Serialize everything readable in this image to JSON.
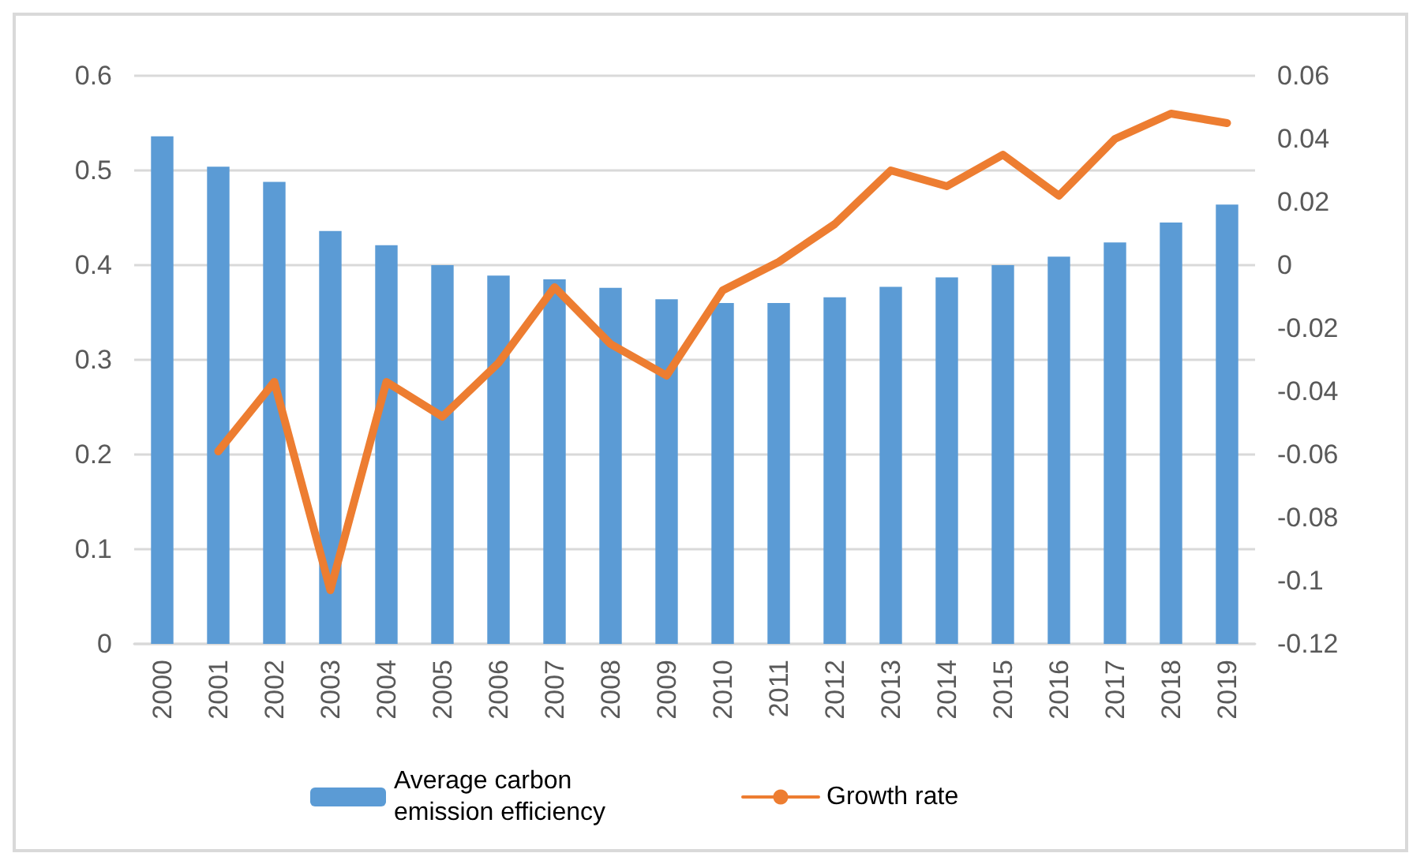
{
  "chart_data": {
    "type": "bar",
    "categories": [
      "2000",
      "2001",
      "2002",
      "2003",
      "2004",
      "2005",
      "2006",
      "2007",
      "2008",
      "2009",
      "2010",
      "2011",
      "2012",
      "2013",
      "2014",
      "2015",
      "2016",
      "2017",
      "2018",
      "2019"
    ],
    "series": [
      {
        "name": "Average carbon emission efficiency",
        "color": "#5b9bd5",
        "values": [
          0.536,
          0.504,
          0.488,
          0.436,
          0.421,
          0.4,
          0.389,
          0.385,
          0.376,
          0.364,
          0.36,
          0.36,
          0.366,
          0.377,
          0.387,
          0.4,
          0.409,
          0.424,
          0.445,
          0.464
        ]
      },
      {
        "name": "Growth rate",
        "type": "line",
        "axis": "y2",
        "color": "#ed7d31",
        "marker": "none",
        "values": [
          null,
          -0.059,
          -0.037,
          -0.103,
          -0.037,
          -0.048,
          -0.031,
          -0.007,
          -0.025,
          -0.035,
          -0.008,
          0.001,
          0.013,
          0.03,
          0.025,
          0.035,
          0.022,
          0.04,
          0.048,
          0.045
        ]
      }
    ],
    "ylim": [
      0,
      0.6
    ],
    "yticks": [
      0,
      0.1,
      0.2,
      0.3,
      0.4,
      0.5,
      0.6
    ],
    "y2lim": [
      -0.12,
      0.06
    ],
    "y2ticks": [
      -0.12,
      -0.1,
      -0.08,
      -0.06,
      -0.04,
      -0.02,
      0,
      0.02,
      0.04,
      0.06
    ],
    "grid": "y",
    "legend": "bottom"
  }
}
